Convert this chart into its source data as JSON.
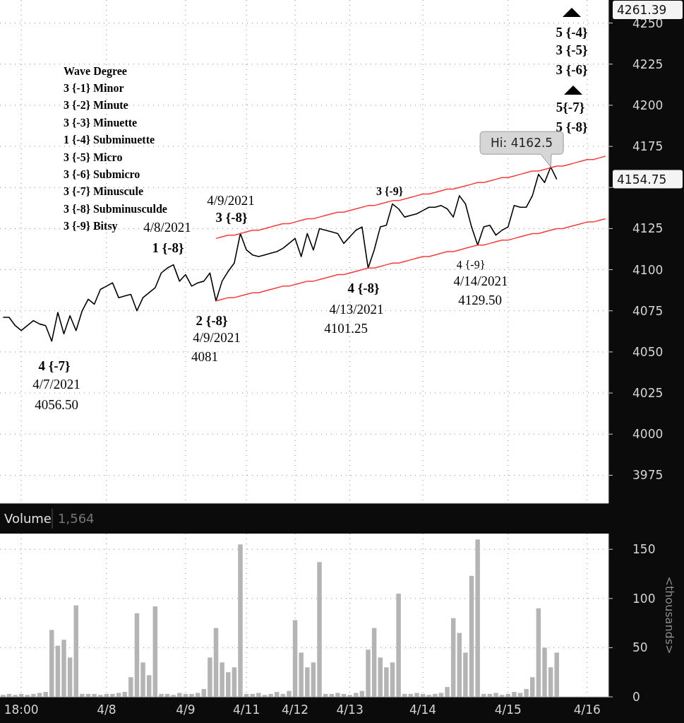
{
  "chart_data": [
    {
      "type": "line",
      "grid": true,
      "ylim": [
        3958,
        4264
      ],
      "categories": [
        null,
        null,
        null,
        null,
        null,
        null,
        null,
        null,
        null,
        null,
        null,
        null,
        null,
        null,
        null,
        null,
        null,
        null,
        null,
        null,
        null,
        null,
        null,
        null,
        null,
        null,
        null,
        null,
        null,
        null,
        null,
        null,
        null,
        null,
        null,
        null,
        null,
        null,
        null,
        null,
        null,
        null,
        null,
        null,
        null,
        null,
        null,
        null,
        null,
        null,
        null,
        null,
        null,
        null,
        null,
        null,
        null,
        null,
        null,
        null,
        null,
        null,
        null,
        null,
        null,
        null,
        null,
        null,
        null,
        null,
        null,
        null,
        null,
        null,
        null,
        null,
        null,
        null,
        null,
        null,
        null,
        null,
        null,
        null,
        null,
        null,
        null,
        null,
        null,
        null,
        null,
        null,
        null,
        null,
        null,
        null,
        null,
        null,
        null,
        null
      ],
      "yticks": [
        3975,
        4000,
        4025,
        4050,
        4075,
        4100,
        4125,
        {
          "value": 4150,
          "label": null
        },
        4175,
        4200,
        4225,
        4250
      ],
      "series": [
        {
          "color": "#000000",
          "values": [
            4071,
            4071,
            4066,
            4063,
            4066,
            4069,
            4067,
            4066,
            4056.5,
            4074,
            4061,
            4072,
            4063,
            4075,
            4082,
            4079,
            4088,
            4090,
            4092,
            4083,
            4084,
            4085,
            4075,
            4083,
            4086,
            4089,
            4098,
            4101,
            4103,
            4093,
            4097,
            4090,
            4092,
            4093,
            4098,
            4081,
            4093,
            4099,
            4104,
            4122,
            4112,
            4109,
            4108,
            4109,
            4110,
            4111,
            4113,
            4116,
            4119,
            4108,
            4122,
            4112,
            4125,
            4124,
            4123,
            4122,
            4116,
            4120,
            4124,
            4126,
            4101,
            4112,
            4126,
            4127,
            4140,
            4137,
            4132,
            4133,
            4134,
            4136,
            4138,
            4138,
            4139,
            4137,
            4132,
            4145,
            4140,
            4126,
            4115,
            4126,
            4127,
            4121,
            4124,
            4126,
            4139,
            4138,
            4138,
            4145,
            4158,
            4153,
            4162.5,
            4155,
            null,
            null,
            null,
            null,
            null,
            null,
            null,
            null
          ]
        },
        {
          "type": "line",
          "color": "#ff3b3b",
          "values": [
            null,
            null,
            null,
            null,
            null,
            null,
            null,
            null,
            null,
            null,
            null,
            null,
            null,
            null,
            null,
            null,
            null,
            null,
            null,
            null,
            null,
            null,
            null,
            null,
            null,
            null,
            null,
            null,
            null,
            null,
            null,
            null,
            null,
            null,
            null,
            4119,
            4120,
            4121,
            4121,
            4122,
            4123,
            4124,
            4124,
            4125,
            4126,
            4127,
            4128,
            4128,
            4129,
            4130,
            4131,
            4131,
            4132,
            4133,
            4134,
            4135,
            4135,
            4136,
            4137,
            4138,
            4139,
            4139,
            4140,
            4141,
            4142,
            4142,
            4143,
            4144,
            4145,
            4146,
            4146,
            4147,
            4148,
            4149,
            4149,
            4150,
            4151,
            4152,
            4153,
            4153,
            4154,
            4155,
            4156,
            4156,
            4157,
            4158,
            4159,
            4160,
            4160,
            4161,
            4162,
            4163,
            4163,
            4164,
            4165,
            4166,
            4167,
            4167,
            4168,
            4169
          ]
        },
        {
          "type": "line",
          "color": "#ff3b3b",
          "values": [
            null,
            null,
            null,
            null,
            null,
            null,
            null,
            null,
            null,
            null,
            null,
            null,
            null,
            null,
            null,
            null,
            null,
            null,
            null,
            null,
            null,
            null,
            null,
            null,
            null,
            null,
            null,
            null,
            null,
            null,
            null,
            null,
            null,
            null,
            null,
            4081,
            4082,
            4083,
            4083,
            4084,
            4085,
            4086,
            4086,
            4087,
            4088,
            4089,
            4090,
            4090,
            4091,
            4092,
            4093,
            4093,
            4094,
            4095,
            4096,
            4097,
            4097,
            4098,
            4099,
            4100,
            4101,
            4101,
            4102,
            4103,
            4104,
            4104,
            4105,
            4106,
            4107,
            4108,
            4108,
            4109,
            4110,
            4111,
            4111,
            4112,
            4113,
            4114,
            4115,
            4115,
            4116,
            4117,
            4118,
            4118,
            4119,
            4120,
            4121,
            4122,
            4122,
            4123,
            4124,
            4125,
            4125,
            4126,
            4127,
            4128,
            4129,
            4129,
            4130,
            4131
          ]
        }
      ],
      "annotations": [
        "Wave Degree",
        "3 {-1} Minor",
        "3 {-2} Minute",
        "3 {-3} Minuette",
        "1 {-4} Subminuette",
        "3 {-5} Micro",
        "3 {-6} Submicro",
        "3 {-7} Minuscule",
        "3 {-8} Subminusculde",
        "3 {-9} Bitsy",
        "4/8/2021",
        "1 {-8}",
        "4/9/2021",
        "3 {-8}",
        "2 {-8}",
        "4/9/2021",
        "4081",
        "4 {-7}",
        "4/7/2021",
        "4056.50",
        "4 {-8}",
        "4/13/2021",
        "4101.25",
        "3 {-9}",
        "4 {-9}",
        "4/14/2021",
        "4129.50",
        "5 {-4}",
        "3 {-5}",
        "3 {-6}",
        "5{-7}",
        "5 {-8}",
        "Hi: 4162.5",
        "4154.75",
        "4261.39"
      ]
    },
    {
      "type": "bar",
      "title": "Volume",
      "ylabel": "<thousands>",
      "grid": true,
      "color": "#b4b4b4",
      "ylim": [
        0,
        166
      ],
      "categories": [
        null,
        null,
        null,
        "18:00",
        null,
        null,
        null,
        null,
        null,
        null,
        null,
        null,
        null,
        null,
        null,
        null,
        null,
        "4/8",
        null,
        null,
        null,
        null,
        null,
        null,
        null,
        null,
        null,
        null,
        null,
        null,
        "4/9",
        null,
        null,
        null,
        null,
        null,
        null,
        null,
        null,
        null,
        "4/11",
        null,
        null,
        null,
        null,
        null,
        null,
        null,
        "4/12",
        null,
        null,
        null,
        null,
        null,
        null,
        null,
        null,
        "4/13",
        null,
        null,
        null,
        null,
        null,
        null,
        null,
        null,
        null,
        null,
        null,
        "4/14",
        null,
        null,
        null,
        null,
        null,
        null,
        null,
        null,
        null,
        null,
        null,
        null,
        null,
        "4/15",
        null,
        null,
        null,
        null,
        null,
        null,
        null,
        null,
        null,
        null,
        null,
        null,
        "4/16",
        null,
        null,
        null
      ],
      "yticks": [
        0,
        50,
        100,
        150
      ],
      "values": [
        2,
        3,
        2,
        3,
        2,
        3,
        4,
        5,
        68,
        52,
        58,
        40,
        93,
        3,
        3,
        3,
        2,
        3,
        3,
        4,
        5,
        20,
        85,
        35,
        22,
        92,
        3,
        3,
        2,
        4,
        3,
        3,
        4,
        8,
        40,
        70,
        35,
        25,
        30,
        155,
        3,
        3,
        4,
        2,
        3,
        5,
        3,
        6,
        78,
        45,
        30,
        35,
        137,
        3,
        3,
        4,
        3,
        2,
        4,
        6,
        48,
        70,
        40,
        30,
        35,
        105,
        3,
        3,
        4,
        3,
        2,
        3,
        4,
        10,
        80,
        65,
        45,
        123,
        160,
        3,
        3,
        4,
        2,
        3,
        5,
        4,
        8,
        20,
        90,
        50,
        30,
        45,
        null,
        null,
        null,
        null,
        null,
        null,
        null,
        null
      ],
      "annotations": [
        "1,564"
      ]
    }
  ]
}
